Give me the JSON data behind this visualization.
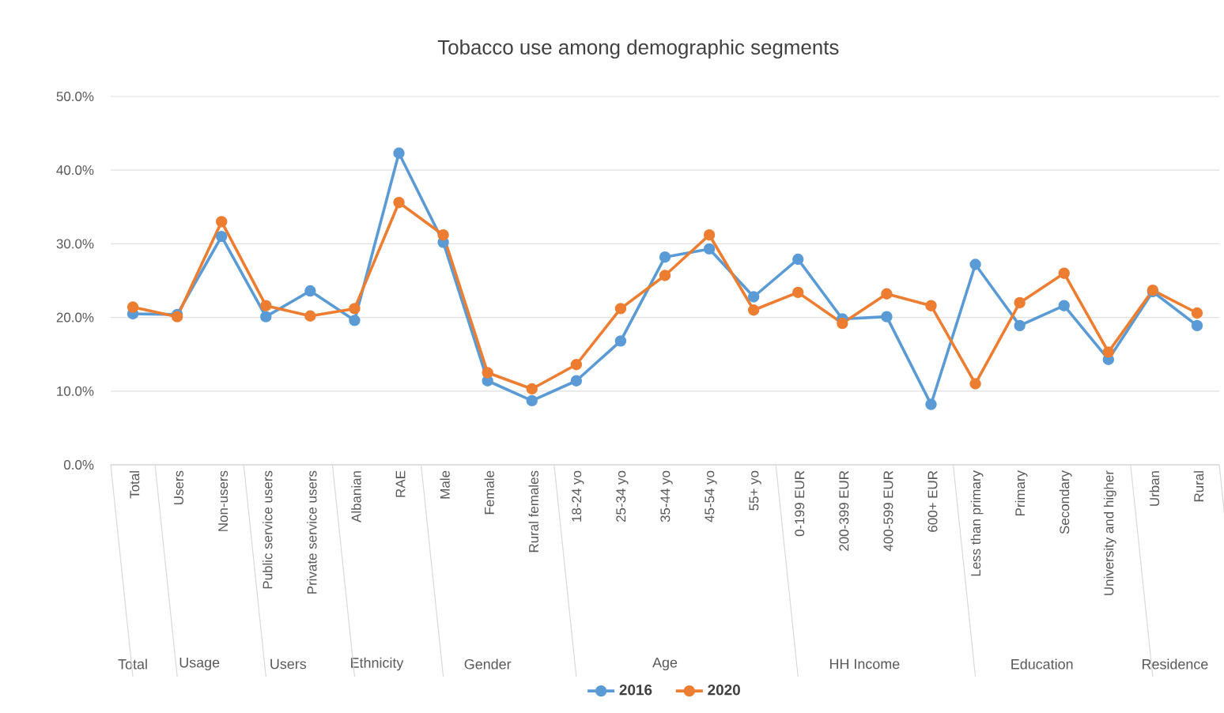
{
  "chart_data": {
    "type": "line",
    "title": "Tobacco use among demographic segments",
    "categories": [
      "Total",
      "Users",
      "Non-users",
      "Public service users",
      "Private service users",
      "Albanian",
      "RAE",
      "Male",
      "Female",
      "Rural females",
      "18-24 yo",
      "25-34 yo",
      "35-44 yo",
      "45-54 yo",
      "55+ yo",
      "0-199 EUR",
      "200-399 EUR",
      "400-599 EUR",
      "600+ EUR",
      "Less than primary",
      "Primary",
      "Secondary",
      "University and higher",
      "Urban",
      "Rural"
    ],
    "series": [
      {
        "name": "2016",
        "color": "#5b9bd5",
        "values": [
          20.5,
          20.4,
          31.0,
          20.1,
          23.6,
          19.6,
          42.3,
          30.2,
          11.4,
          8.7,
          11.4,
          16.8,
          28.2,
          29.3,
          22.8,
          27.9,
          19.8,
          20.1,
          8.2,
          27.2,
          18.9,
          21.6,
          14.3,
          23.5,
          18.9
        ]
      },
      {
        "name": "2020",
        "color": "#ed7d31",
        "values": [
          21.4,
          20.1,
          33.0,
          21.6,
          20.2,
          21.2,
          35.6,
          31.2,
          12.5,
          10.3,
          13.6,
          21.2,
          25.7,
          31.2,
          21.0,
          23.4,
          19.2,
          23.2,
          21.6,
          11.0,
          22.0,
          26.0,
          15.3,
          23.7,
          20.6
        ]
      }
    ],
    "ylim": [
      0,
      50
    ],
    "yticks": [
      {
        "value": 0,
        "label": "0.0%"
      },
      {
        "value": 10,
        "label": "10.0%"
      },
      {
        "value": 20,
        "label": "20.0%"
      },
      {
        "value": 30,
        "label": "30.0%"
      },
      {
        "value": 40,
        "label": "40.0%"
      },
      {
        "value": 50,
        "label": "50.0%"
      }
    ],
    "grid": "y",
    "legend": "bottom",
    "marker": "circle",
    "line_style": "solid",
    "annotations": [
      "Total",
      "Usage",
      "Users",
      "Ethnicity",
      "Gender",
      "Age",
      "HH Income",
      "Education",
      "Residence"
    ]
  }
}
